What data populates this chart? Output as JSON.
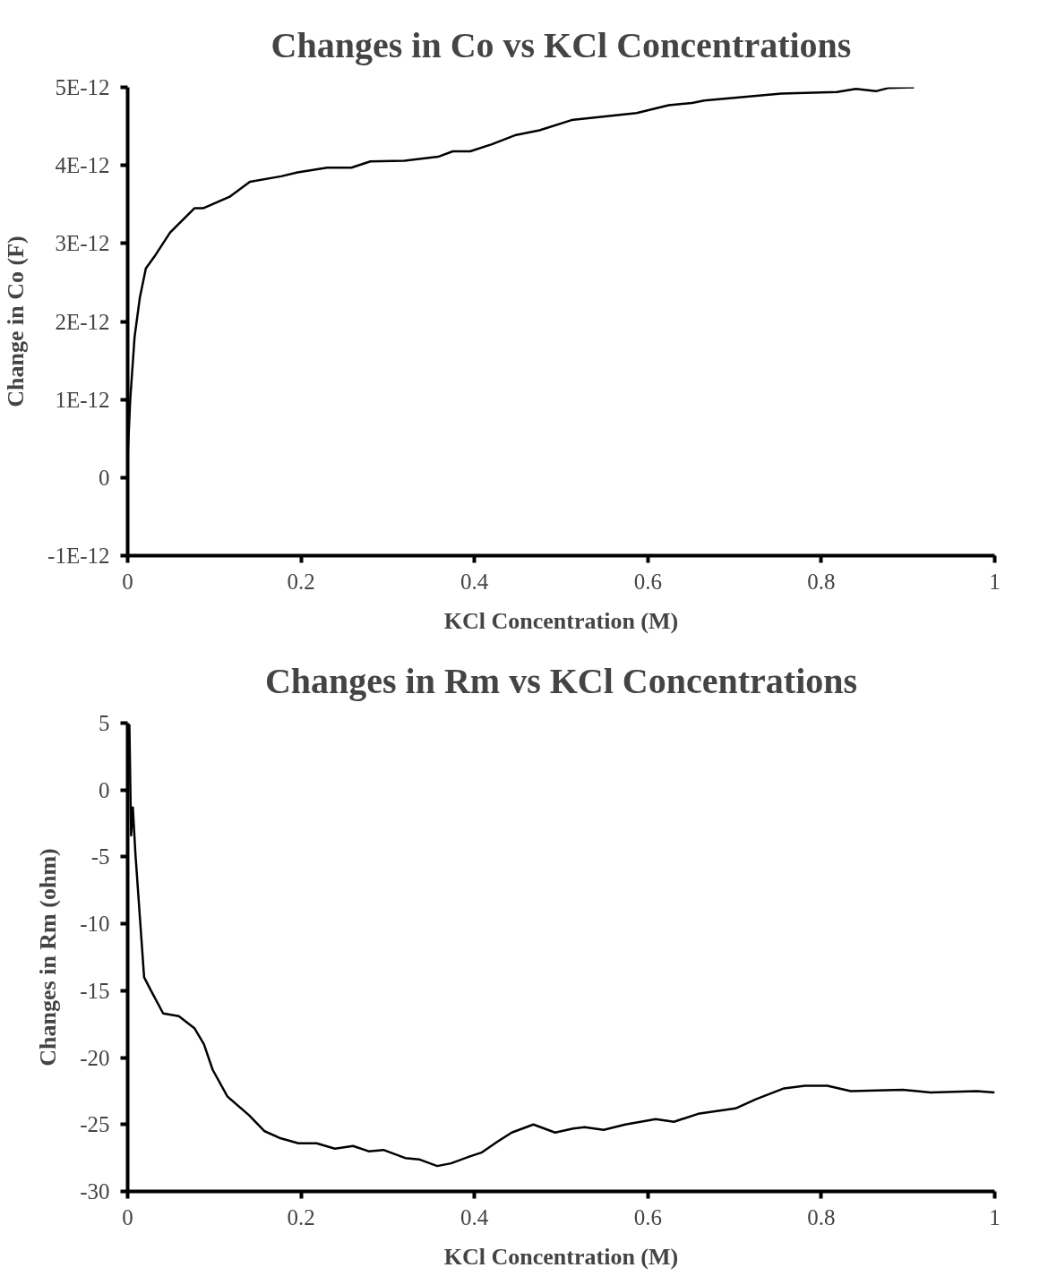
{
  "chart_data": [
    {
      "type": "line",
      "title": "Changes in Co vs KCl Concentrations",
      "xlabel": "KCl Concentration (M)",
      "ylabel": "Change in Co (F)",
      "xlim": [
        0,
        1
      ],
      "xticks": [
        0,
        0.2,
        0.4,
        0.6,
        0.8,
        1
      ],
      "ylim": [
        -1e-12,
        5e-12
      ],
      "yticks": [
        {
          "value": 5e-12,
          "label": "5E-12"
        },
        {
          "value": 4e-12,
          "label": "4E-12"
        },
        {
          "value": 3e-12,
          "label": "3E-12"
        },
        {
          "value": 2e-12,
          "label": "2E-12"
        },
        {
          "value": 1e-12,
          "label": "1E-12"
        },
        0,
        {
          "value": -1e-12,
          "label": "-1E-12"
        }
      ],
      "series": [
        {
          "color": "#000000",
          "x": [
            0,
            0.003,
            0.008,
            0.014,
            0.021,
            0.032,
            0.049,
            0.077,
            0.087,
            0.118,
            0.141,
            0.177,
            0.196,
            0.23,
            0.258,
            0.28,
            0.319,
            0.358,
            0.375,
            0.395,
            0.42,
            0.448,
            0.475,
            0.512,
            0.587,
            0.624,
            0.651,
            0.665,
            0.754,
            0.818,
            0.84,
            0.863,
            0.877,
            0.907
          ],
          "values": [
            2.6e-13,
            1e-12,
            1.8e-12,
            2.3e-12,
            2.68e-12,
            2.85e-12,
            3.14e-12,
            3.45e-12,
            3.45e-12,
            3.6e-12,
            3.79e-12,
            3.86e-12,
            3.91e-12,
            3.97e-12,
            3.97e-12,
            4.05e-12,
            4.06e-12,
            4.11e-12,
            4.18e-12,
            4.18e-12,
            4.27e-12,
            4.39e-12,
            4.45e-12,
            4.58e-12,
            4.67e-12,
            4.77e-12,
            4.8e-12,
            4.83e-12,
            4.92e-12,
            4.94e-12,
            4.98e-12,
            4.95e-12,
            4.99e-12,
            5e-12
          ]
        }
      ]
    },
    {
      "type": "line",
      "title": "Changes in Rm vs KCl Concentrations",
      "xlabel": "KCl Concentration (M)",
      "ylabel": "Changes in Rm (ohm)",
      "xlim": [
        0,
        1
      ],
      "xticks": [
        0,
        0.2,
        0.4,
        0.6,
        0.8,
        1
      ],
      "ylim": [
        -30,
        5
      ],
      "yticks": [
        5,
        0,
        -5,
        -10,
        -15,
        -20,
        -25,
        -30
      ],
      "series": [
        {
          "color": "#000000",
          "x": [
            0.002,
            0.004,
            0.006,
            0.009,
            0.019,
            0.027,
            0.041,
            0.059,
            0.077,
            0.088,
            0.098,
            0.115,
            0.14,
            0.158,
            0.175,
            0.197,
            0.218,
            0.239,
            0.26,
            0.278,
            0.295,
            0.32,
            0.336,
            0.357,
            0.373,
            0.394,
            0.408,
            0.426,
            0.443,
            0.468,
            0.493,
            0.514,
            0.527,
            0.549,
            0.574,
            0.609,
            0.63,
            0.658,
            0.701,
            0.725,
            0.757,
            0.781,
            0.807,
            0.834,
            0.894,
            0.926,
            0.979,
            1.0
          ],
          "values": [
            4.9,
            -3.4,
            -1.3,
            -4.8,
            -14.0,
            -15.0,
            -16.7,
            -16.9,
            -17.8,
            -19.0,
            -20.9,
            -22.9,
            -24.3,
            -25.5,
            -26.0,
            -26.4,
            -26.4,
            -26.8,
            -26.6,
            -27.0,
            -26.9,
            -27.5,
            -27.6,
            -28.1,
            -27.9,
            -27.4,
            -27.1,
            -26.3,
            -25.6,
            -25.0,
            -25.6,
            -25.3,
            -25.2,
            -25.4,
            -25.0,
            -24.6,
            -24.8,
            -24.2,
            -23.8,
            -23.1,
            -22.3,
            -22.1,
            -22.1,
            -22.5,
            -22.4,
            -22.6,
            -22.5,
            -22.6
          ]
        }
      ]
    }
  ]
}
